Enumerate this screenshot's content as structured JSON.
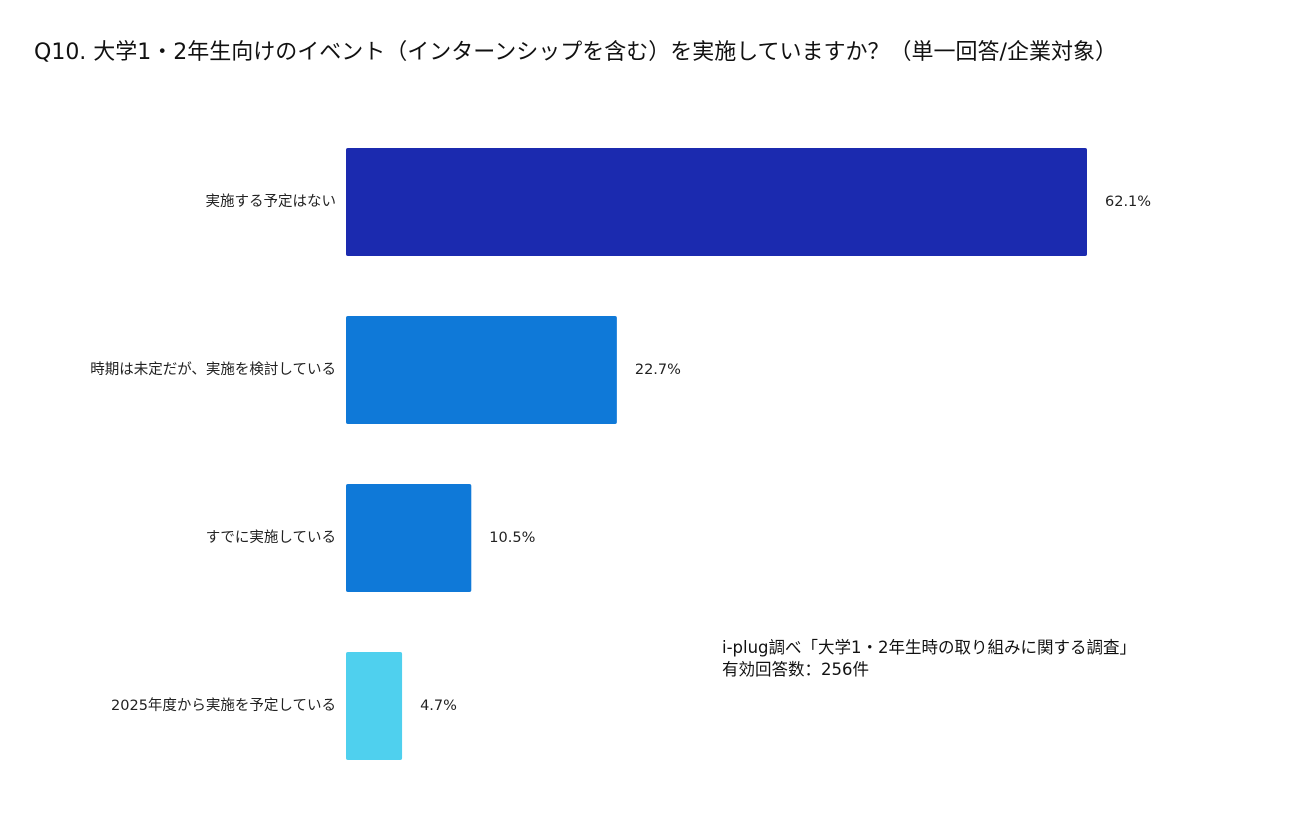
{
  "chart_data": {
    "type": "bar",
    "orientation": "horizontal",
    "title": "Q10. 大学1・2年生向けのイベント（インターンシップを含む）を実施していますか？（単一回答/企業対象）",
    "categories": [
      "実施する予定はない",
      "時期は未定だが、実施を検討している",
      "すでに実施している",
      "2025年度から実施を予定している"
    ],
    "values": [
      62.1,
      22.7,
      10.5,
      4.7
    ],
    "value_labels": [
      "62.1%",
      "22.7%",
      "10.5%",
      "4.7%"
    ],
    "colors": [
      "#1b2aaf",
      "#0f79d8",
      "#0f79d8",
      "#4fd0ee"
    ],
    "xlabel": "",
    "ylabel": "",
    "xlim": [
      0,
      62.1
    ],
    "grid": false,
    "legend": "none"
  },
  "note": {
    "source": "i-plug調べ「大学1・2年生時の取り組みに関する調査」",
    "respondents": "有効回答数：256件"
  }
}
